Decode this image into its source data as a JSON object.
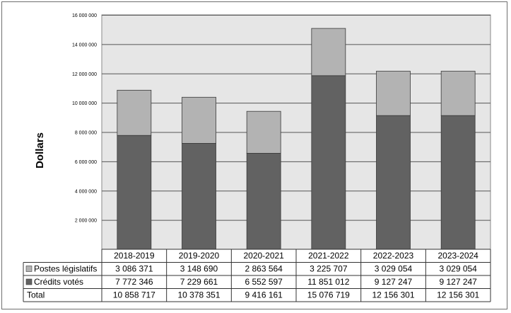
{
  "chart_data": {
    "type": "bar",
    "stacked": true,
    "ylabel": "Dollars",
    "ylim": [
      0,
      16000000
    ],
    "yticks": [
      2000000,
      4000000,
      6000000,
      8000000,
      10000000,
      12000000,
      14000000,
      16000000
    ],
    "ytick_labels": [
      "2 000 000",
      "4 000 000",
      "6 000 000",
      "8 000 000",
      "10 000 000",
      "12 000 000",
      "14 000 000",
      "16 000 000"
    ],
    "grid": true,
    "categories": [
      "2018-2019",
      "2019-2020",
      "2020-2021",
      "2021-2022",
      "2022-2023",
      "2023-2024"
    ],
    "series": [
      {
        "name": "Crédits votés",
        "color": "#626262",
        "values": [
          7772346,
          7229661,
          6552597,
          11851012,
          9127247,
          9127247
        ],
        "labels": [
          "7 772 346",
          "7 229 661",
          "6 552 597",
          "11 851 012",
          "9 127 247",
          "9 127 247"
        ]
      },
      {
        "name": "Postes législatifs",
        "color": "#b3b3b3",
        "values": [
          3086371,
          3148690,
          2863564,
          3225707,
          3029054,
          3029054
        ],
        "labels": [
          "3 086 371",
          "3 148 690",
          "2 863 564",
          "3 225 707",
          "3 029 054",
          "3 029 054"
        ]
      }
    ],
    "total": {
      "name": "Total",
      "values": [
        10858717,
        10378351,
        9416161,
        15076719,
        12156301,
        12156301
      ],
      "labels": [
        "10 858 717",
        "10 378 351",
        "9 416 161",
        "15 076 719",
        "12 156 301",
        "12 156 301"
      ]
    }
  }
}
